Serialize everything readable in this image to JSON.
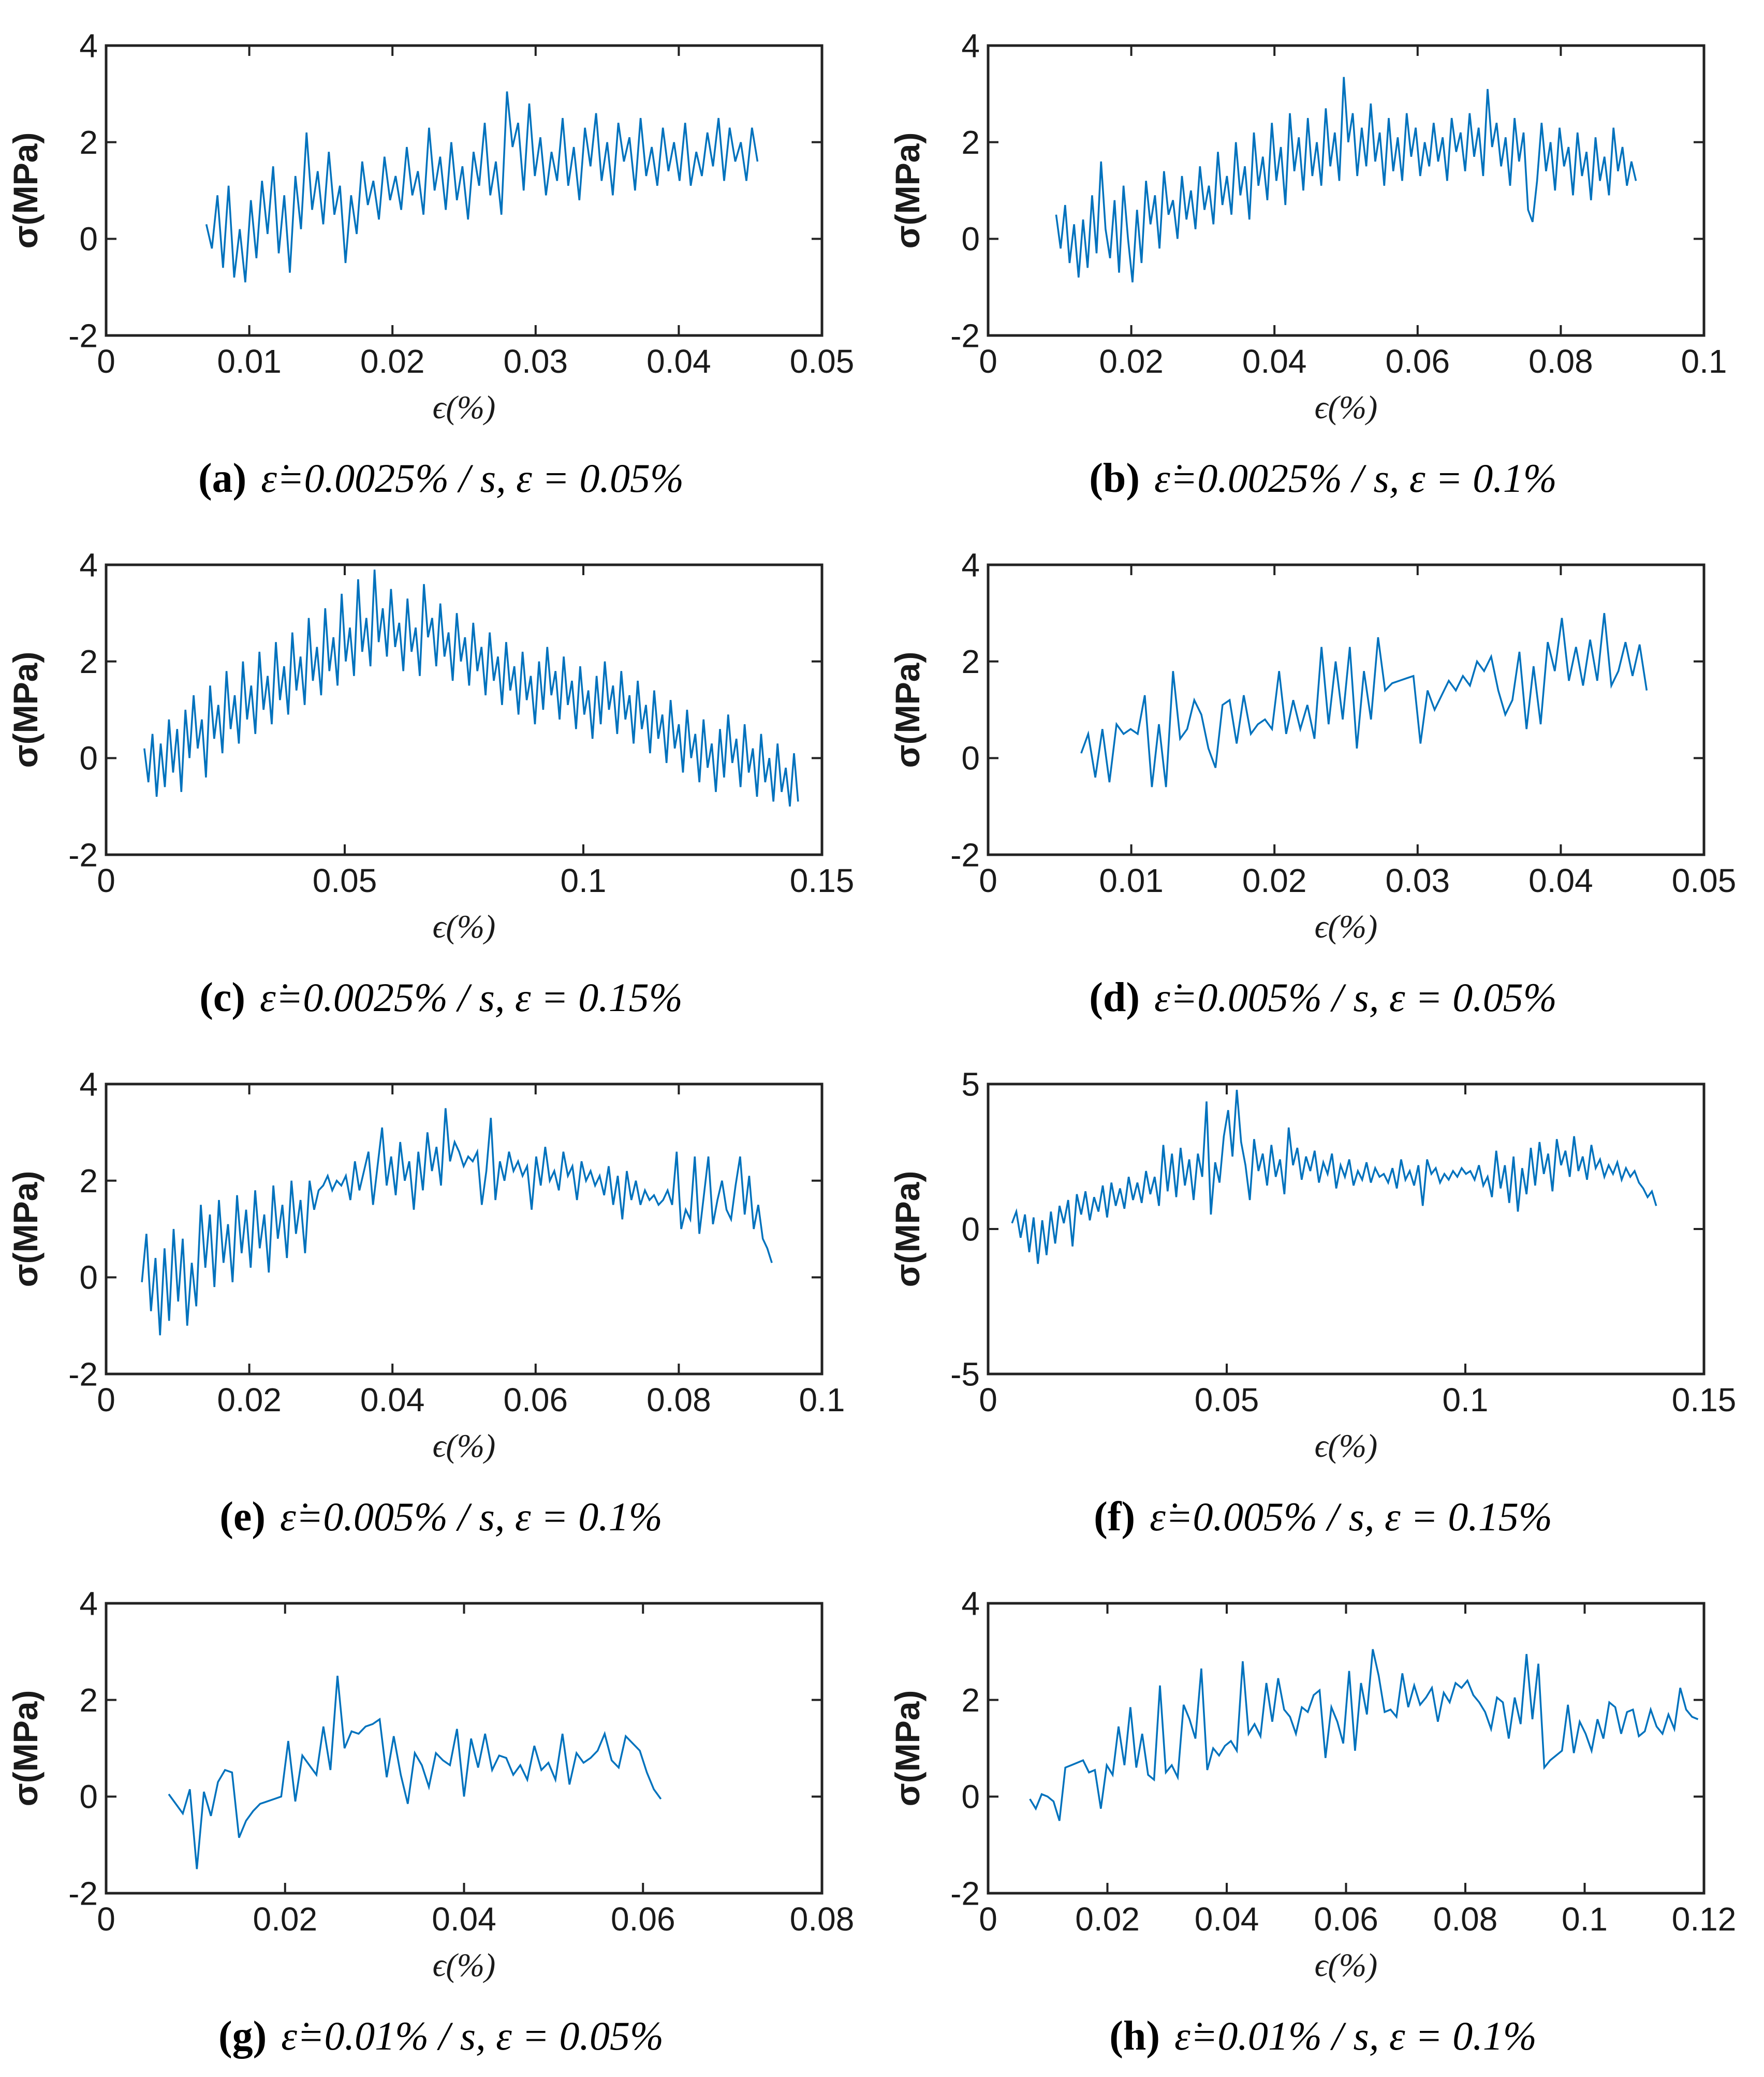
{
  "figure": {
    "line_color": "#0072bd",
    "axes_color": "#222222",
    "background": "#ffffff",
    "ylabel": "σ(MPa)",
    "xlabel": "ϵ(%)"
  },
  "chart_data": [
    {
      "id": "a",
      "type": "line",
      "caption_index": "(a)",
      "caption": "ε̇=0.0025% / s, ε = 0.05%",
      "xlabel": "ϵ(%)",
      "ylabel": "σ(MPa)",
      "xlim": [
        0,
        0.05
      ],
      "ylim": [
        -2,
        4
      ],
      "xticks": [
        0,
        0.01,
        0.02,
        0.03,
        0.04,
        0.05
      ],
      "xtick_labels": [
        "0",
        "0.01",
        "0.02",
        "0.03",
        "0.04",
        "0.05"
      ],
      "yticks": [
        -2,
        0,
        2,
        4
      ],
      "ytick_labels": [
        "-2",
        "0",
        "2",
        "4"
      ],
      "x0": 0.007,
      "x1": 0.0455,
      "y": [
        0.3,
        -0.2,
        0.9,
        -0.6,
        1.1,
        -0.8,
        0.2,
        -0.9,
        0.8,
        -0.4,
        1.2,
        0.1,
        1.5,
        -0.3,
        0.9,
        -0.7,
        1.3,
        0.2,
        2.2,
        0.6,
        1.4,
        0.3,
        1.8,
        0.5,
        1.1,
        -0.5,
        0.9,
        0.1,
        1.6,
        0.7,
        1.2,
        0.4,
        1.7,
        0.8,
        1.3,
        0.6,
        1.9,
        0.9,
        1.4,
        0.5,
        2.3,
        1.0,
        1.7,
        0.6,
        2.0,
        0.8,
        1.5,
        0.4,
        1.8,
        1.1,
        2.4,
        0.9,
        1.6,
        0.5,
        3.05,
        1.9,
        2.4,
        1.0,
        2.8,
        1.3,
        2.1,
        0.9,
        1.8,
        1.2,
        2.5,
        1.1,
        1.9,
        0.8,
        2.3,
        1.5,
        2.6,
        1.2,
        2.0,
        0.9,
        2.4,
        1.6,
        2.1,
        1.0,
        2.5,
        1.3,
        1.9,
        1.1,
        2.3,
        1.4,
        2.0,
        1.2,
        2.4,
        1.1,
        1.8,
        1.3,
        2.2,
        1.5,
        2.5,
        1.2,
        2.3,
        1.6,
        2.0,
        1.2,
        2.3,
        1.6
      ]
    },
    {
      "id": "b",
      "type": "line",
      "caption_index": "(b)",
      "caption": "ε̇=0.0025% / s, ε = 0.1%",
      "xlabel": "ϵ(%)",
      "ylabel": "σ(MPa)",
      "xlim": [
        0,
        0.1
      ],
      "ylim": [
        -2,
        4
      ],
      "xticks": [
        0,
        0.02,
        0.04,
        0.06,
        0.08,
        0.1
      ],
      "xtick_labels": [
        "0",
        "0.02",
        "0.04",
        "0.06",
        "0.08",
        "0.1"
      ],
      "yticks": [
        -2,
        0,
        2,
        4
      ],
      "ytick_labels": [
        "-2",
        "0",
        "2",
        "4"
      ],
      "x0": 0.0095,
      "x1": 0.0905,
      "y": [
        0.5,
        -0.2,
        0.7,
        -0.5,
        0.3,
        -0.8,
        0.4,
        -0.6,
        0.9,
        -0.3,
        1.6,
        0.2,
        -0.4,
        0.8,
        -0.7,
        1.1,
        0.0,
        -0.9,
        0.6,
        -0.5,
        1.2,
        0.3,
        0.9,
        -0.2,
        1.4,
        0.5,
        0.8,
        0.0,
        1.3,
        0.4,
        1.0,
        0.2,
        1.5,
        0.6,
        1.1,
        0.3,
        1.8,
        0.7,
        1.3,
        0.5,
        2.0,
        0.9,
        1.5,
        0.4,
        2.2,
        1.1,
        1.7,
        0.8,
        2.4,
        1.2,
        1.9,
        0.7,
        2.6,
        1.4,
        2.1,
        1.0,
        2.5,
        1.3,
        2.0,
        1.1,
        2.7,
        1.5,
        2.2,
        1.2,
        3.35,
        2.0,
        2.6,
        1.3,
        2.3,
        1.5,
        2.8,
        1.6,
        2.2,
        1.1,
        2.5,
        1.4,
        2.1,
        1.2,
        2.6,
        1.7,
        2.3,
        1.3,
        2.0,
        1.5,
        2.4,
        1.6,
        2.1,
        1.2,
        2.5,
        1.8,
        2.2,
        1.4,
        2.6,
        1.7,
        2.3,
        1.3,
        3.1,
        1.9,
        2.4,
        1.5,
        2.1,
        1.1,
        2.5,
        1.6,
        2.2,
        0.6,
        0.35,
        1.2,
        2.4,
        1.4,
        2.0,
        1.0,
        2.3,
        1.5,
        1.9,
        0.9,
        2.2,
        1.3,
        1.8,
        0.8,
        2.1,
        1.2,
        1.7,
        0.9,
        2.3,
        1.4,
        1.9,
        1.1,
        1.6,
        1.2
      ]
    },
    {
      "id": "c",
      "type": "line",
      "caption_index": "(c)",
      "caption": "ε̇=0.0025% / s, ε = 0.15%",
      "xlabel": "ϵ(%)",
      "ylabel": "σ(MPa)",
      "xlim": [
        0,
        0.15
      ],
      "ylim": [
        -2,
        4
      ],
      "xticks": [
        0,
        0.05,
        0.1,
        0.15
      ],
      "xtick_labels": [
        "0",
        "0.05",
        "0.1",
        "0.15"
      ],
      "yticks": [
        -2,
        0,
        2,
        4
      ],
      "ytick_labels": [
        "-2",
        "0",
        "2",
        "4"
      ],
      "x0": 0.008,
      "x1": 0.145,
      "y": [
        0.2,
        -0.5,
        0.5,
        -0.8,
        0.3,
        -0.6,
        0.8,
        -0.3,
        0.6,
        -0.7,
        1.0,
        0.0,
        1.3,
        0.2,
        0.8,
        -0.4,
        1.5,
        0.4,
        1.1,
        0.1,
        1.8,
        0.6,
        1.3,
        0.3,
        2.0,
        0.8,
        1.5,
        0.5,
        2.2,
        1.0,
        1.7,
        0.7,
        2.4,
        1.2,
        1.9,
        0.9,
        2.6,
        1.4,
        2.1,
        1.1,
        2.9,
        1.6,
        2.3,
        1.3,
        3.1,
        1.8,
        2.5,
        1.5,
        3.4,
        2.0,
        2.7,
        1.7,
        3.7,
        2.2,
        2.9,
        1.9,
        3.9,
        2.4,
        3.1,
        2.1,
        3.5,
        2.3,
        2.8,
        1.8,
        3.3,
        2.2,
        2.7,
        1.7,
        3.6,
        2.5,
        2.9,
        1.9,
        3.2,
        2.1,
        2.6,
        1.6,
        3.0,
        2.0,
        2.5,
        1.5,
        2.8,
        1.8,
        2.3,
        1.3,
        2.6,
        1.6,
        2.1,
        1.1,
        2.4,
        1.4,
        1.9,
        0.9,
        2.2,
        1.2,
        1.7,
        0.7,
        2.0,
        1.0,
        2.3,
        1.3,
        1.8,
        0.8,
        2.1,
        1.1,
        1.6,
        0.6,
        1.9,
        0.9,
        1.4,
        0.4,
        1.7,
        0.7,
        2.0,
        1.0,
        1.5,
        0.5,
        1.8,
        0.8,
        1.3,
        0.3,
        1.6,
        0.6,
        1.1,
        0.1,
        1.4,
        0.4,
        0.9,
        -0.1,
        1.2,
        0.2,
        0.7,
        -0.3,
        1.0,
        0.0,
        0.5,
        -0.5,
        0.8,
        -0.2,
        0.3,
        -0.7,
        0.6,
        -0.4,
        0.9,
        -0.1,
        0.4,
        -0.6,
        0.7,
        -0.3,
        0.2,
        -0.8,
        0.5,
        -0.5,
        0.0,
        -0.9,
        0.3,
        -0.7,
        -0.2,
        -1.0,
        0.1,
        -0.9
      ]
    },
    {
      "id": "d",
      "type": "line",
      "caption_index": "(d)",
      "caption": "ε̇=0.005% / s, ε = 0.05%",
      "xlabel": "ϵ(%)",
      "ylabel": "σ(MPa)",
      "xlim": [
        0,
        0.05
      ],
      "ylim": [
        -2,
        4
      ],
      "xticks": [
        0,
        0.01,
        0.02,
        0.03,
        0.04,
        0.05
      ],
      "xtick_labels": [
        "0",
        "0.01",
        "0.02",
        "0.03",
        "0.04",
        "0.05"
      ],
      "yticks": [
        -2,
        0,
        2,
        4
      ],
      "ytick_labels": [
        "-2",
        "0",
        "2",
        "4"
      ],
      "x0": 0.0065,
      "x1": 0.046,
      "y": [
        0.1,
        0.5,
        -0.4,
        0.6,
        -0.5,
        0.7,
        0.5,
        0.6,
        0.5,
        1.3,
        -0.6,
        0.7,
        -0.6,
        1.8,
        0.4,
        0.6,
        1.2,
        0.9,
        0.2,
        -0.2,
        1.1,
        1.2,
        0.3,
        1.3,
        0.5,
        0.7,
        0.8,
        0.6,
        1.8,
        0.5,
        1.2,
        0.6,
        1.1,
        0.4,
        2.3,
        0.7,
        2.0,
        0.8,
        2.3,
        0.2,
        1.8,
        0.8,
        2.5,
        1.4,
        1.55,
        1.6,
        1.65,
        1.7,
        0.3,
        1.4,
        1.0,
        1.3,
        1.6,
        1.4,
        1.7,
        1.5,
        2.0,
        1.8,
        2.1,
        1.4,
        0.9,
        1.2,
        2.2,
        0.6,
        1.9,
        0.7,
        2.4,
        1.8,
        2.9,
        1.6,
        2.3,
        1.5,
        2.45,
        1.6,
        3.0,
        1.5,
        1.8,
        2.4,
        1.7,
        2.35,
        1.4
      ]
    },
    {
      "id": "e",
      "type": "line",
      "caption_index": "(e)",
      "caption": "ε̇=0.005% / s, ε = 0.1%",
      "xlabel": "ϵ(%)",
      "ylabel": "σ(MPa)",
      "xlim": [
        0,
        0.1
      ],
      "ylim": [
        -2,
        4
      ],
      "xticks": [
        0,
        0.02,
        0.04,
        0.06,
        0.08,
        0.1
      ],
      "xtick_labels": [
        "0",
        "0.02",
        "0.04",
        "0.06",
        "0.08",
        "0.1"
      ],
      "yticks": [
        -2,
        0,
        2,
        4
      ],
      "ytick_labels": [
        "-2",
        "0",
        "2",
        "4"
      ],
      "x0": 0.005,
      "x1": 0.093,
      "y": [
        -0.1,
        0.9,
        -0.7,
        0.4,
        -1.2,
        0.6,
        -0.9,
        1.0,
        -0.5,
        0.8,
        -1.0,
        0.3,
        -0.6,
        1.5,
        0.2,
        1.3,
        -0.2,
        1.6,
        0.3,
        1.1,
        -0.1,
        1.7,
        0.5,
        1.4,
        0.2,
        1.8,
        0.6,
        1.3,
        0.1,
        1.9,
        0.8,
        1.5,
        0.4,
        2.0,
        0.9,
        1.6,
        0.5,
        2.0,
        1.4,
        1.8,
        1.9,
        2.1,
        1.8,
        2.0,
        1.9,
        2.1,
        1.6,
        2.4,
        1.8,
        2.2,
        2.6,
        1.5,
        2.3,
        3.1,
        1.9,
        2.5,
        1.7,
        2.8,
        2.0,
        2.4,
        1.4,
        2.6,
        1.8,
        3.0,
        2.2,
        2.7,
        1.9,
        3.5,
        2.4,
        2.8,
        2.6,
        2.3,
        2.5,
        2.4,
        2.6,
        1.5,
        2.2,
        3.3,
        1.6,
        2.4,
        2.0,
        2.6,
        2.2,
        2.4,
        2.1,
        2.3,
        1.4,
        2.5,
        1.9,
        2.7,
        2.0,
        2.2,
        1.8,
        2.6,
        2.1,
        2.3,
        1.6,
        2.4,
        2.0,
        2.2,
        1.9,
        2.1,
        1.7,
        2.3,
        1.5,
        2.1,
        1.2,
        2.2,
        1.6,
        2.0,
        1.5,
        1.8,
        1.6,
        1.7,
        1.5,
        1.6,
        1.8,
        1.5,
        2.6,
        1.0,
        1.4,
        1.2,
        2.5,
        0.9,
        1.7,
        2.5,
        1.1,
        1.6,
        2.0,
        1.4,
        1.2,
        1.9,
        2.5,
        1.3,
        2.1,
        1.0,
        1.5,
        0.8,
        0.6,
        0.3
      ]
    },
    {
      "id": "f",
      "type": "line",
      "caption_index": "(f)",
      "caption": "ε̇=0.005% / s, ε = 0.15%",
      "xlabel": "ϵ(%)",
      "ylabel": "σ(MPa)",
      "xlim": [
        0,
        0.15
      ],
      "ylim": [
        -5,
        5
      ],
      "xticks": [
        0,
        0.05,
        0.1,
        0.15
      ],
      "xtick_labels": [
        "0",
        "0.05",
        "0.1",
        "0.15"
      ],
      "yticks": [
        -5,
        0,
        5
      ],
      "ytick_labels": [
        "-5",
        "0",
        "5"
      ],
      "x0": 0.005,
      "x1": 0.14,
      "y": [
        0.2,
        0.6,
        -0.3,
        0.5,
        -0.8,
        0.4,
        -1.2,
        0.3,
        -0.9,
        0.6,
        -0.5,
        0.8,
        0.2,
        1.0,
        -0.6,
        1.2,
        0.5,
        1.3,
        0.3,
        1.1,
        0.6,
        1.5,
        0.4,
        1.6,
        0.8,
        1.4,
        0.7,
        1.8,
        1.0,
        1.6,
        0.9,
        2.0,
        1.2,
        1.8,
        0.8,
        2.9,
        1.3,
        2.6,
        1.1,
        2.8,
        1.5,
        2.4,
        1.0,
        2.6,
        1.8,
        4.4,
        0.5,
        2.3,
        1.6,
        3.2,
        4.1,
        2.5,
        4.8,
        3.0,
        2.2,
        1.0,
        3.1,
        2.0,
        2.6,
        1.5,
        2.9,
        1.8,
        2.4,
        1.2,
        3.5,
        2.2,
        2.8,
        1.7,
        2.5,
        2.0,
        2.7,
        1.6,
        2.3,
        1.9,
        2.6,
        1.4,
        2.2,
        1.8,
        2.4,
        1.5,
        2.0,
        1.7,
        2.3,
        1.6,
        2.1,
        1.8,
        1.9,
        1.6,
        2.1,
        1.4,
        2.4,
        1.7,
        2.0,
        1.5,
        2.2,
        0.8,
        2.4,
        1.9,
        2.1,
        1.6,
        1.9,
        1.7,
        2.0,
        1.8,
        2.1,
        1.9,
        2.0,
        1.7,
        2.2,
        1.5,
        1.8,
        1.1,
        2.7,
        1.4,
        2.2,
        0.9,
        2.5,
        0.6,
        2.1,
        1.2,
        2.8,
        1.5,
        3.0,
        1.9,
        2.6,
        1.3,
        3.1,
        2.2,
        2.7,
        1.8,
        3.2,
        2.0,
        2.5,
        1.7,
        2.9,
        2.1,
        2.4,
        1.8,
        2.2,
        1.9,
        2.3,
        1.7,
        2.1,
        1.8,
        2.0,
        1.6,
        1.4,
        1.1,
        1.3,
        0.8
      ]
    },
    {
      "id": "g",
      "type": "line",
      "caption_index": "(g)",
      "caption": "ε̇=0.01% / s, ε = 0.05%",
      "xlabel": "ϵ(%)",
      "ylabel": "σ(MPa)",
      "xlim": [
        0,
        0.08
      ],
      "ylim": [
        -2,
        4
      ],
      "xticks": [
        0,
        0.02,
        0.04,
        0.06,
        0.08
      ],
      "xtick_labels": [
        "0",
        "0.02",
        "0.04",
        "0.06",
        "0.08"
      ],
      "yticks": [
        -2,
        0,
        2,
        4
      ],
      "ytick_labels": [
        "-2",
        "0",
        "2",
        "4"
      ],
      "x0": 0.007,
      "x1": 0.062,
      "y": [
        0.05,
        -0.15,
        -0.35,
        0.15,
        -1.5,
        0.1,
        -0.4,
        0.3,
        0.55,
        0.5,
        -0.85,
        -0.5,
        -0.3,
        -0.15,
        -0.1,
        -0.05,
        0.0,
        1.15,
        -0.1,
        0.85,
        0.65,
        0.45,
        1.45,
        0.55,
        2.5,
        1.0,
        1.35,
        1.3,
        1.45,
        1.5,
        1.6,
        0.4,
        1.25,
        0.45,
        -0.15,
        0.9,
        0.65,
        0.2,
        0.9,
        0.75,
        0.65,
        1.4,
        0.0,
        1.2,
        0.6,
        1.3,
        0.55,
        0.85,
        0.8,
        0.45,
        0.65,
        0.35,
        1.05,
        0.55,
        0.7,
        0.35,
        1.3,
        0.25,
        0.9,
        0.7,
        0.8,
        0.95,
        1.3,
        0.75,
        0.6,
        1.25,
        1.1,
        0.95,
        0.5,
        0.15,
        -0.05
      ]
    },
    {
      "id": "h",
      "type": "line",
      "caption_index": "(h)",
      "caption": "ε̇=0.01% / s, ε = 0.1%",
      "xlabel": "ϵ(%)",
      "ylabel": "σ(MPa)",
      "xlim": [
        0,
        0.12
      ],
      "ylim": [
        -2,
        4
      ],
      "xticks": [
        0,
        0.02,
        0.04,
        0.06,
        0.08,
        0.1,
        0.12
      ],
      "xtick_labels": [
        "0",
        "0.02",
        "0.04",
        "0.06",
        "0.08",
        "0.1",
        "0.12"
      ],
      "yticks": [
        -2,
        0,
        2,
        4
      ],
      "ytick_labels": [
        "-2",
        "0",
        "2",
        "4"
      ],
      "x0": 0.007,
      "x1": 0.119,
      "y": [
        -0.05,
        -0.25,
        0.05,
        0.0,
        -0.1,
        -0.5,
        0.6,
        0.65,
        0.7,
        0.75,
        0.5,
        0.55,
        -0.25,
        0.65,
        0.45,
        1.45,
        0.65,
        1.85,
        0.6,
        1.3,
        0.45,
        0.35,
        2.3,
        0.5,
        0.65,
        0.4,
        1.9,
        1.6,
        1.2,
        2.65,
        0.55,
        1.0,
        0.85,
        1.05,
        1.15,
        0.95,
        2.8,
        1.3,
        1.5,
        1.25,
        2.35,
        1.55,
        2.45,
        1.8,
        1.65,
        1.3,
        1.85,
        1.75,
        2.1,
        2.2,
        0.8,
        1.85,
        1.55,
        1.1,
        2.6,
        0.95,
        2.35,
        1.7,
        3.05,
        2.5,
        1.75,
        1.8,
        1.65,
        2.55,
        1.85,
        2.3,
        1.9,
        2.05,
        2.25,
        1.55,
        2.15,
        1.95,
        2.35,
        2.25,
        2.4,
        2.1,
        1.95,
        1.75,
        1.4,
        2.05,
        1.95,
        1.2,
        2.05,
        1.5,
        2.95,
        1.6,
        2.75,
        0.6,
        0.75,
        0.85,
        0.95,
        1.9,
        0.9,
        1.55,
        1.3,
        0.95,
        1.6,
        1.2,
        1.95,
        1.85,
        1.3,
        1.75,
        1.8,
        1.25,
        1.35,
        1.8,
        1.45,
        1.3,
        1.7,
        1.4,
        2.25,
        1.8,
        1.65,
        1.6
      ]
    }
  ]
}
